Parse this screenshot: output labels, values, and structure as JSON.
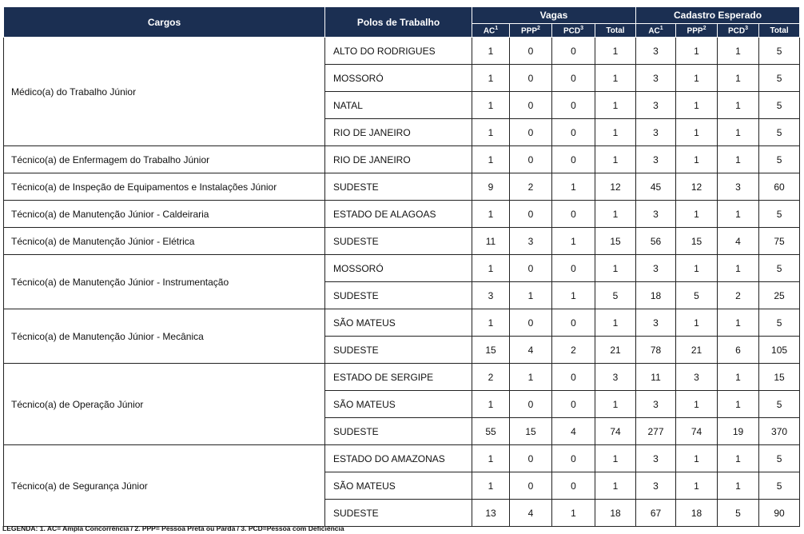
{
  "headers": {
    "cargos": "Cargos",
    "polos": "Polos de Trabalho",
    "vagas": "Vagas",
    "cadastro": "Cadastro Esperado",
    "sub": [
      {
        "l": "AC",
        "s": "1"
      },
      {
        "l": "PPP",
        "s": "2"
      },
      {
        "l": "PCD",
        "s": "3"
      },
      {
        "l": "Total",
        "s": ""
      },
      {
        "l": "AC",
        "s": "1"
      },
      {
        "l": "PPP",
        "s": "2"
      },
      {
        "l": "PCD",
        "s": "3"
      },
      {
        "l": "Total",
        "s": ""
      }
    ]
  },
  "groups": [
    {
      "cargo": "Médico(a) do Trabalho Júnior",
      "rows": [
        [
          "ALTO DO RODRIGUES",
          1,
          0,
          0,
          1,
          3,
          1,
          1,
          5
        ],
        [
          "MOSSORÓ",
          1,
          0,
          0,
          1,
          3,
          1,
          1,
          5
        ],
        [
          "NATAL",
          1,
          0,
          0,
          1,
          3,
          1,
          1,
          5
        ],
        [
          "RIO DE JANEIRO",
          1,
          0,
          0,
          1,
          3,
          1,
          1,
          5
        ]
      ]
    },
    {
      "cargo": "Técnico(a) de Enfermagem do Trabalho Júnior",
      "rows": [
        [
          "RIO DE JANEIRO",
          1,
          0,
          0,
          1,
          3,
          1,
          1,
          5
        ]
      ]
    },
    {
      "cargo": "Técnico(a) de Inspeção de Equipamentos e Instalações Júnior",
      "rows": [
        [
          "SUDESTE",
          9,
          2,
          1,
          12,
          45,
          12,
          3,
          60
        ]
      ]
    },
    {
      "cargo": "Técnico(a)  de Manutenção Júnior - Caldeiraria",
      "rows": [
        [
          "ESTADO DE ALAGOAS",
          1,
          0,
          0,
          1,
          3,
          1,
          1,
          5
        ]
      ]
    },
    {
      "cargo": "Técnico(a)  de Manutenção Júnior - Elétrica",
      "rows": [
        [
          "SUDESTE",
          11,
          3,
          1,
          15,
          56,
          15,
          4,
          75
        ]
      ]
    },
    {
      "cargo": "Técnico(a)  de Manutenção Júnior - Instrumentação",
      "rows": [
        [
          "MOSSORÓ",
          1,
          0,
          0,
          1,
          3,
          1,
          1,
          5
        ],
        [
          "SUDESTE",
          3,
          1,
          1,
          5,
          18,
          5,
          2,
          25
        ]
      ]
    },
    {
      "cargo": "Técnico(a)  de Manutenção Júnior - Mecânica",
      "rows": [
        [
          "SÃO MATEUS",
          1,
          0,
          0,
          1,
          3,
          1,
          1,
          5
        ],
        [
          "SUDESTE",
          15,
          4,
          2,
          21,
          78,
          21,
          6,
          105
        ]
      ]
    },
    {
      "cargo": "Técnico(a) de Operação Júnior",
      "rows": [
        [
          "ESTADO DE SERGIPE",
          2,
          1,
          0,
          3,
          11,
          3,
          1,
          15
        ],
        [
          "SÃO MATEUS",
          1,
          0,
          0,
          1,
          3,
          1,
          1,
          5
        ],
        [
          "SUDESTE",
          55,
          15,
          4,
          74,
          277,
          74,
          19,
          370
        ]
      ]
    },
    {
      "cargo": "Técnico(a) de Segurança Júnior",
      "rows": [
        [
          "ESTADO DO AMAZONAS",
          1,
          0,
          0,
          1,
          3,
          1,
          1,
          5
        ],
        [
          "SÃO MATEUS",
          1,
          0,
          0,
          1,
          3,
          1,
          1,
          5
        ],
        [
          "SUDESTE",
          13,
          4,
          1,
          18,
          67,
          18,
          5,
          90
        ]
      ]
    }
  ],
  "legend": "LEGENDA: 1. AC= Ampla Concorrência / 2. PPP= Pessoa Preta ou Parda / 3. PCD=Pessoa com Deficiência"
}
